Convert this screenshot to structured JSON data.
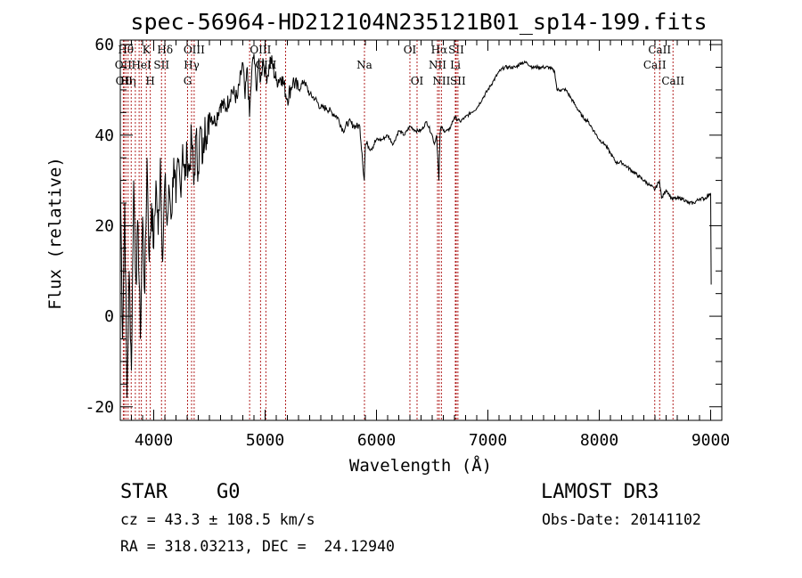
{
  "chart_data": {
    "type": "line",
    "title": "spec-56964-HD212104N235121B01_sp14-199.fits",
    "xlabel": "Wavelength (Å)",
    "ylabel": "Flux (relative)",
    "xlim": [
      3700,
      9100
    ],
    "ylim": [
      -23,
      61
    ],
    "xticks": [
      4000,
      5000,
      6000,
      7000,
      8000,
      9000
    ],
    "yticks": [
      -20,
      0,
      20,
      40,
      60
    ],
    "line_color": "#000000",
    "marker_color": "#b22222",
    "series": [
      {
        "name": "flux",
        "x": [
          3700,
          3720,
          3740,
          3760,
          3780,
          3800,
          3820,
          3840,
          3860,
          3880,
          3900,
          3920,
          3940,
          3960,
          3980,
          4000,
          4020,
          4040,
          4060,
          4080,
          4100,
          4120,
          4140,
          4160,
          4180,
          4200,
          4220,
          4240,
          4260,
          4280,
          4300,
          4320,
          4340,
          4360,
          4380,
          4400,
          4420,
          4440,
          4460,
          4480,
          4500,
          4550,
          4600,
          4650,
          4700,
          4750,
          4800,
          4820,
          4840,
          4860,
          4880,
          4900,
          4920,
          4940,
          4960,
          4980,
          5000,
          5020,
          5050,
          5100,
          5150,
          5200,
          5250,
          5300,
          5350,
          5400,
          5450,
          5500,
          5550,
          5600,
          5650,
          5700,
          5750,
          5800,
          5850,
          5870,
          5890,
          5900,
          5920,
          5950,
          6000,
          6050,
          6100,
          6150,
          6200,
          6250,
          6300,
          6350,
          6400,
          6450,
          6500,
          6520,
          6540,
          6560,
          6570,
          6580,
          6600,
          6650,
          6700,
          6750,
          6800,
          6850,
          6900,
          6950,
          7000,
          7050,
          7100,
          7150,
          7200,
          7250,
          7300,
          7350,
          7400,
          7450,
          7500,
          7550,
          7600,
          7620,
          7650,
          7700,
          7750,
          7800,
          7850,
          7900,
          7950,
          8000,
          8050,
          8100,
          8150,
          8200,
          8250,
          8300,
          8350,
          8400,
          8450,
          8500,
          8540,
          8560,
          8600,
          8650,
          8700,
          8750,
          8800,
          8850,
          8900,
          8950,
          8990,
          9000,
          9005
        ],
        "y": [
          32,
          -5,
          25,
          -18,
          10,
          -12,
          30,
          8,
          20,
          -5,
          22,
          5,
          35,
          12,
          25,
          15,
          30,
          18,
          35,
          12,
          30,
          20,
          28,
          22,
          35,
          25,
          34,
          28,
          38,
          30,
          36,
          32,
          40,
          29,
          40,
          32,
          42,
          34,
          44,
          38,
          45,
          43,
          47,
          46,
          50,
          48,
          56,
          48,
          55,
          44,
          54,
          58,
          50,
          56,
          52,
          57,
          54,
          53,
          57,
          52,
          53,
          48,
          52,
          50,
          52,
          49,
          48,
          46,
          46,
          45,
          44,
          41,
          43,
          42,
          42,
          36,
          30,
          38,
          38,
          37,
          39,
          39,
          40,
          38,
          41,
          40,
          42,
          41,
          41,
          43,
          40,
          38,
          40,
          30,
          40,
          42,
          41,
          41,
          44,
          43,
          44,
          45,
          46,
          48,
          50,
          52,
          54,
          55,
          55,
          55,
          56,
          56,
          55,
          55,
          55,
          55,
          54,
          50,
          50,
          50,
          48,
          46,
          44,
          43,
          41,
          39,
          38,
          36,
          34,
          34,
          33,
          32,
          31,
          30,
          29,
          28,
          30,
          26,
          28,
          26,
          26,
          26,
          25,
          25,
          26,
          26,
          27,
          27,
          7
        ]
      }
    ],
    "line_markers": [
      {
        "wave": 3727,
        "label": "OII",
        "row": 2
      },
      {
        "wave": 3734,
        "label": "OII",
        "row": 3
      },
      {
        "wave": 3750,
        "label": "Hθ",
        "row": 1
      },
      {
        "wave": 3770,
        "label": "Hη",
        "row": 3
      },
      {
        "wave": 3798,
        "label": "",
        "row": 0
      },
      {
        "wave": 3835,
        "label": "",
        "row": 0
      },
      {
        "wave": 3869,
        "label": "",
        "row": 0
      },
      {
        "wave": 3889,
        "label": "HeI",
        "row": 2
      },
      {
        "wave": 3934,
        "label": "K",
        "row": 1
      },
      {
        "wave": 3969,
        "label": "H",
        "row": 3
      },
      {
        "wave": 4070,
        "label": "SII",
        "row": 2
      },
      {
        "wave": 4102,
        "label": "Hδ",
        "row": 1
      },
      {
        "wave": 4304,
        "label": "G",
        "row": 3
      },
      {
        "wave": 4340,
        "label": "Hγ",
        "row": 2
      },
      {
        "wave": 4363,
        "label": "OIII",
        "row": 1
      },
      {
        "wave": 4861,
        "label": "",
        "row": 0
      },
      {
        "wave": 4959,
        "label": "OIII",
        "row": 1
      },
      {
        "wave": 5007,
        "label": "OIII",
        "row": 2
      },
      {
        "wave": 5184,
        "label": "",
        "row": 0
      },
      {
        "wave": 5892,
        "label": "Na",
        "row": 2
      },
      {
        "wave": 6300,
        "label": "OI",
        "row": 1
      },
      {
        "wave": 6364,
        "label": "OI",
        "row": 3
      },
      {
        "wave": 6548,
        "label": "NII",
        "row": 2
      },
      {
        "wave": 6563,
        "label": "Hα",
        "row": 1
      },
      {
        "wave": 6583,
        "label": "NII",
        "row": 3
      },
      {
        "wave": 6708,
        "label": "Li",
        "row": 2
      },
      {
        "wave": 6716,
        "label": "SII",
        "row": 1
      },
      {
        "wave": 6731,
        "label": "SII",
        "row": 3
      },
      {
        "wave": 8498,
        "label": "CaII",
        "row": 2
      },
      {
        "wave": 8542,
        "label": "CaII",
        "row": 1
      },
      {
        "wave": 8662,
        "label": "CaII",
        "row": 3
      }
    ]
  },
  "info": {
    "object_type": "STAR",
    "subclass": "G0",
    "survey": "LAMOST DR3",
    "redshift": "cz = 43.3 ± 108.5 km/s",
    "obs_date": "Obs-Date: 20141102",
    "coords": "RA = 318.03213, DEC =  24.12940"
  }
}
